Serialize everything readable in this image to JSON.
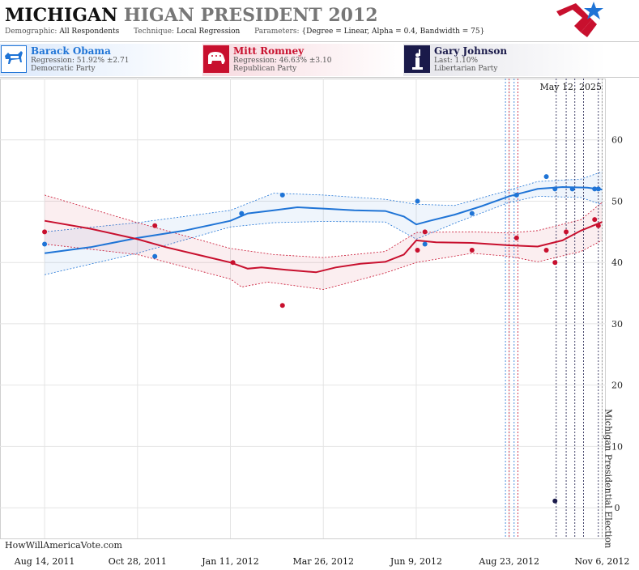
{
  "header": {
    "title_main": "MICHIGAN",
    "title_sub": "HIGAN PRESIDENT 2012",
    "demographic_label": "Demographic:",
    "demographic_value": "All Respondents",
    "technique_label": "Technique:",
    "technique_value": "Local Regression",
    "parameters_label": "Parameters:",
    "parameters_value": "{Degree = Linear, Alpha = 0.4, Bandwidth = 75}"
  },
  "candidates": [
    {
      "name": "Barack Obama",
      "stat": "Regression: 51.92% ±2.71",
      "party": "Democratic Party",
      "color": "#1f74d6",
      "icon": "donkey-icon"
    },
    {
      "name": "Mitt Romney",
      "stat": "Regression: 46.63% ±3.10",
      "party": "Republican Party",
      "color": "#c8102e",
      "icon": "elephant-icon"
    },
    {
      "name": "Gary Johnson",
      "stat": "Last: 1.10%",
      "party": "Libertarian Party",
      "color": "#1a1a4a",
      "icon": "statue-of-liberty-icon"
    }
  ],
  "watermark": "HowWillAmericaVote.com",
  "date_label": "May 12, 2025",
  "chart_data": {
    "type": "line",
    "x_ticks": [
      "2011-08-14",
      "2011-10-28",
      "2012-01-11",
      "2012-03-26",
      "2012-06-09",
      "2012-08-23",
      "2012-11-06"
    ],
    "x_tick_labels": [
      "Aug 14, 2011",
      "Oct 28, 2011",
      "Jan 11, 2012",
      "Mar 26, 2012",
      "Jun 9, 2012",
      "Aug 23, 2012",
      "Nov 6, 2012"
    ],
    "xlim": [
      "2011-07-09",
      "2012-11-09"
    ],
    "ylim": [
      -5,
      70
    ],
    "y_ticks": [
      0,
      10,
      20,
      30,
      40,
      50,
      60
    ],
    "grid": true,
    "event": {
      "date": "2012-11-06",
      "label": "Michigan Presidential Election"
    },
    "poll_lines": [
      {
        "date": "2012-08-20",
        "color": "#1f74d6"
      },
      {
        "date": "2012-08-23",
        "color": "#c8102e"
      },
      {
        "date": "2012-08-27",
        "color": "#1f74d6"
      },
      {
        "date": "2012-08-30",
        "color": "#c8102e"
      },
      {
        "date": "2012-09-30",
        "color": "#1a1a4a"
      },
      {
        "date": "2012-10-08",
        "color": "#1a1a4a"
      },
      {
        "date": "2012-10-15",
        "color": "#1a1a4a"
      },
      {
        "date": "2012-10-22",
        "color": "#1a1a4a"
      },
      {
        "date": "2012-11-03",
        "color": "#1a1a4a"
      }
    ],
    "series": [
      {
        "name": "Barack Obama",
        "color": "#1f74d6",
        "points": [
          [
            "2011-08-14",
            43
          ],
          [
            "2011-11-11",
            41
          ],
          [
            "2012-01-20",
            48
          ],
          [
            "2012-02-22",
            51
          ],
          [
            "2012-06-10",
            50
          ],
          [
            "2012-06-16",
            43
          ],
          [
            "2012-07-24",
            48
          ],
          [
            "2012-08-29",
            51
          ],
          [
            "2012-09-22",
            54
          ],
          [
            "2012-09-29",
            52
          ],
          [
            "2012-10-13",
            52
          ],
          [
            "2012-10-31",
            52
          ],
          [
            "2012-11-03",
            52
          ]
        ],
        "trend": [
          [
            "2011-08-14",
            41.5
          ],
          [
            "2011-09-20",
            42.5
          ],
          [
            "2011-10-28",
            44
          ],
          [
            "2011-12-05",
            45.2
          ],
          [
            "2012-01-11",
            46.8
          ],
          [
            "2012-01-25",
            48.0
          ],
          [
            "2012-02-15",
            48.5
          ],
          [
            "2012-03-05",
            49
          ],
          [
            "2012-03-26",
            48.8
          ],
          [
            "2012-04-20",
            48.5
          ],
          [
            "2012-05-15",
            48.4
          ],
          [
            "2012-05-30",
            47.5
          ],
          [
            "2012-06-09",
            46.2
          ],
          [
            "2012-06-20",
            46.8
          ],
          [
            "2012-07-10",
            47.8
          ],
          [
            "2012-08-01",
            49.2
          ],
          [
            "2012-08-23",
            50.8
          ],
          [
            "2012-09-15",
            52.0
          ],
          [
            "2012-10-05",
            52.3
          ],
          [
            "2012-10-25",
            52.2
          ],
          [
            "2012-11-06",
            51.9
          ]
        ],
        "upper": [
          [
            "2011-08-14",
            45
          ],
          [
            "2011-10-28",
            46.5
          ],
          [
            "2012-01-11",
            48.5
          ],
          [
            "2012-02-15",
            51.3
          ],
          [
            "2012-03-26",
            51
          ],
          [
            "2012-05-15",
            50.3
          ],
          [
            "2012-06-09",
            49.5
          ],
          [
            "2012-07-10",
            49.3
          ],
          [
            "2012-08-23",
            51.8
          ],
          [
            "2012-09-15",
            53.2
          ],
          [
            "2012-10-20",
            53.6
          ],
          [
            "2012-11-06",
            54.8
          ]
        ],
        "lower": [
          [
            "2011-08-14",
            38
          ],
          [
            "2011-10-28",
            41.5
          ],
          [
            "2012-01-11",
            45.8
          ],
          [
            "2012-02-15",
            46.5
          ],
          [
            "2012-03-26",
            46.7
          ],
          [
            "2012-05-15",
            46.6
          ],
          [
            "2012-06-09",
            43.8
          ],
          [
            "2012-07-10",
            46.4
          ],
          [
            "2012-08-23",
            49.8
          ],
          [
            "2012-09-15",
            50.8
          ],
          [
            "2012-10-20",
            50.6
          ],
          [
            "2012-11-06",
            49.4
          ]
        ]
      },
      {
        "name": "Mitt Romney",
        "color": "#c8102e",
        "points": [
          [
            "2011-08-14",
            45
          ],
          [
            "2011-11-11",
            46
          ],
          [
            "2012-01-13",
            40
          ],
          [
            "2012-02-22",
            33
          ],
          [
            "2012-06-10",
            42
          ],
          [
            "2012-06-16",
            45
          ],
          [
            "2012-07-24",
            42
          ],
          [
            "2012-08-29",
            44
          ],
          [
            "2012-09-22",
            42
          ],
          [
            "2012-09-29",
            40
          ],
          [
            "2012-10-08",
            45
          ],
          [
            "2012-10-31",
            47
          ],
          [
            "2012-11-03",
            46
          ]
        ],
        "trend": [
          [
            "2011-08-14",
            46.8
          ],
          [
            "2011-09-20",
            45.5
          ],
          [
            "2011-10-28",
            43.8
          ],
          [
            "2011-11-20",
            42.5
          ],
          [
            "2011-12-15",
            41.3
          ],
          [
            "2012-01-11",
            40.0
          ],
          [
            "2012-01-25",
            39.0
          ],
          [
            "2012-02-05",
            39.2
          ],
          [
            "2012-02-25",
            38.8
          ],
          [
            "2012-03-20",
            38.4
          ],
          [
            "2012-04-05",
            39.2
          ],
          [
            "2012-04-25",
            39.8
          ],
          [
            "2012-05-15",
            40.1
          ],
          [
            "2012-05-30",
            41.3
          ],
          [
            "2012-06-09",
            43.6
          ],
          [
            "2012-06-25",
            43.3
          ],
          [
            "2012-07-24",
            43.2
          ],
          [
            "2012-08-23",
            42.8
          ],
          [
            "2012-09-15",
            42.6
          ],
          [
            "2012-10-05",
            43.6
          ],
          [
            "2012-10-20",
            45.2
          ],
          [
            "2012-11-06",
            46.6
          ]
        ],
        "upper": [
          [
            "2011-08-14",
            51
          ],
          [
            "2011-10-28",
            46.5
          ],
          [
            "2012-01-11",
            42.3
          ],
          [
            "2012-02-15",
            41.3
          ],
          [
            "2012-03-26",
            40.8
          ],
          [
            "2012-05-15",
            41.8
          ],
          [
            "2012-06-09",
            44.9
          ],
          [
            "2012-07-24",
            45
          ],
          [
            "2012-08-23",
            44.8
          ],
          [
            "2012-09-15",
            45.2
          ],
          [
            "2012-10-20",
            47.0
          ],
          [
            "2012-11-06",
            49.8
          ]
        ],
        "lower": [
          [
            "2011-08-14",
            43
          ],
          [
            "2011-10-28",
            41.3
          ],
          [
            "2012-01-11",
            37.3
          ],
          [
            "2012-01-20",
            36.0
          ],
          [
            "2012-02-10",
            36.8
          ],
          [
            "2012-03-26",
            35.6
          ],
          [
            "2012-05-15",
            38.3
          ],
          [
            "2012-06-09",
            40.0
          ],
          [
            "2012-07-24",
            41.5
          ],
          [
            "2012-08-23",
            41.0
          ],
          [
            "2012-09-15",
            40.1
          ],
          [
            "2012-10-20",
            41.8
          ],
          [
            "2012-11-06",
            43.6
          ]
        ]
      },
      {
        "name": "Gary Johnson",
        "color": "#1a1a4a",
        "points": [
          [
            "2012-09-29",
            1.1
          ]
        ]
      }
    ]
  }
}
